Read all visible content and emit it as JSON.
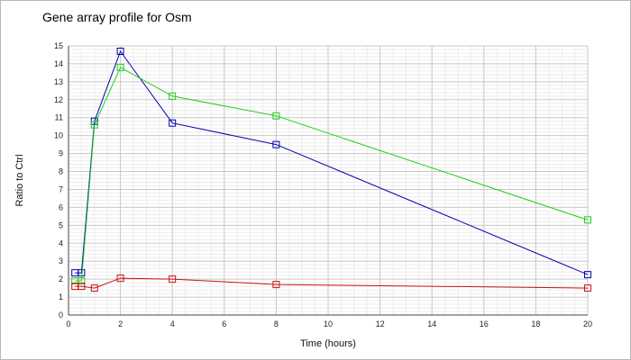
{
  "chart_data": {
    "type": "line",
    "title": "Gene array profile for Osm",
    "xlabel": "Time (hours)",
    "ylabel": "Ratio to Ctrl",
    "xlim": [
      0,
      20
    ],
    "ylim": [
      0,
      15
    ],
    "x_ticks": [
      0,
      2,
      4,
      6,
      8,
      10,
      12,
      14,
      16,
      18,
      20
    ],
    "y_ticks": [
      0,
      1,
      2,
      3,
      4,
      5,
      6,
      7,
      8,
      9,
      10,
      11,
      12,
      13,
      14,
      15
    ],
    "grid": true,
    "marker": "square",
    "series": [
      {
        "color": "#0000b0",
        "x": [
          0.25,
          0.5,
          1,
          2,
          4,
          8,
          20
        ],
        "y": [
          2.35,
          2.35,
          10.8,
          14.7,
          10.7,
          9.5,
          2.25
        ]
      },
      {
        "color": "#22cc22",
        "x": [
          0.25,
          0.5,
          1,
          2,
          4,
          8,
          20
        ],
        "y": [
          1.9,
          1.9,
          10.6,
          13.8,
          12.2,
          11.1,
          5.3
        ]
      },
      {
        "color": "#cc1010",
        "x": [
          0.25,
          0.5,
          1,
          2,
          4,
          8,
          20
        ],
        "y": [
          1.6,
          1.6,
          1.5,
          2.05,
          2.0,
          1.7,
          1.5
        ]
      }
    ]
  }
}
